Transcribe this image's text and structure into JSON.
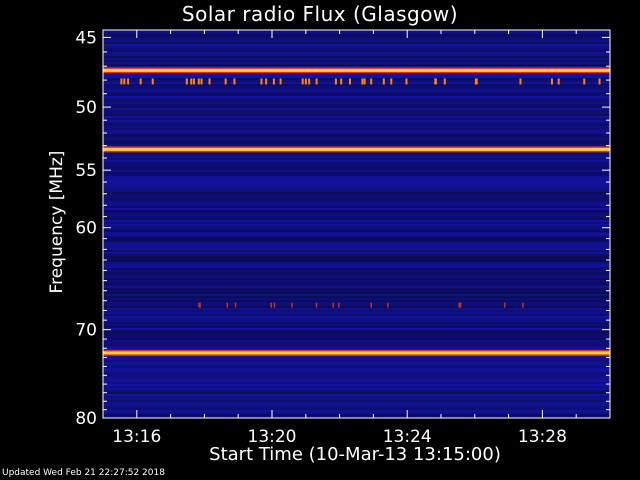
{
  "chart_data": {
    "type": "heatmap",
    "title": "Solar radio Flux (Glasgow)",
    "xlabel": "Start Time (10-Mar-13 13:15:00)",
    "ylabel": "Frequency [MHz]",
    "x_tick_labels": [
      "13:16",
      "13:20",
      "13:24",
      "13:28"
    ],
    "x_ticks_minutes": [
      16,
      20,
      24,
      28
    ],
    "x_range_minutes": [
      15,
      30
    ],
    "y_tick_labels": [
      "45",
      "50",
      "55",
      "60",
      "70",
      "80"
    ],
    "y_ticks": [
      45,
      50,
      55,
      60,
      70,
      80
    ],
    "y_range": [
      44.5,
      80
    ],
    "y_inverted": true,
    "y_scale": "log",
    "bright_bands_mhz": [
      47.3,
      53.3,
      72.5
    ],
    "colormap": [
      "#000010",
      "#0a0a80",
      "#1e1ec8",
      "#e0301c",
      "#ffb000",
      "#ffff80"
    ]
  },
  "footer": {
    "updated": "Updated Wed Feb 21 22:27:52 2018"
  }
}
